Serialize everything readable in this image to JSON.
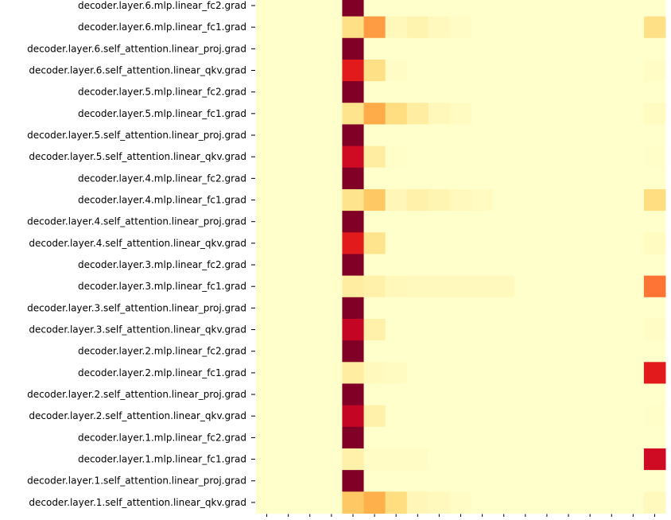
{
  "chart_data": {
    "type": "heatmap",
    "title": "",
    "xlabel": "",
    "ylabel": "",
    "colormap": "YlOrRd",
    "color_low": "#ffffcc",
    "color_high": "#800026",
    "n_columns": 19,
    "rows": [
      {
        "label": "decoder.layer.6.mlp.linear_fc2.grad",
        "values": [
          0,
          0,
          0,
          0,
          1,
          0,
          0,
          0,
          0,
          0,
          0,
          0,
          0,
          0,
          0,
          0,
          0,
          0,
          0
        ]
      },
      {
        "label": "decoder.layer.6.mlp.linear_fc1.grad",
        "values": [
          0,
          0,
          0,
          0,
          0.2,
          0.45,
          0.05,
          0.08,
          0.04,
          0.02,
          0,
          0,
          0,
          0,
          0,
          0,
          0,
          0,
          0.2
        ]
      },
      {
        "label": "decoder.layer.6.self_attention.linear_proj.grad",
        "values": [
          0,
          0,
          0,
          0,
          1,
          0,
          0,
          0,
          0,
          0,
          0,
          0,
          0,
          0,
          0,
          0,
          0,
          0,
          0
        ]
      },
      {
        "label": "decoder.layer.6.self_attention.linear_qkv.grad",
        "values": [
          0,
          0,
          0,
          0,
          0.75,
          0.2,
          0.02,
          0,
          0,
          0,
          0,
          0,
          0,
          0,
          0,
          0,
          0,
          0,
          0.02
        ]
      },
      {
        "label": "decoder.layer.5.mlp.linear_fc2.grad",
        "values": [
          0,
          0,
          0,
          0,
          1,
          0,
          0,
          0,
          0,
          0,
          0,
          0,
          0,
          0,
          0,
          0,
          0,
          0,
          0
        ]
      },
      {
        "label": "decoder.layer.5.mlp.linear_fc1.grad",
        "values": [
          0,
          0,
          0,
          0,
          0.18,
          0.4,
          0.22,
          0.12,
          0.05,
          0.03,
          0,
          0,
          0,
          0,
          0,
          0,
          0,
          0,
          0.03
        ]
      },
      {
        "label": "decoder.layer.5.self_attention.linear_proj.grad",
        "values": [
          0,
          0,
          0,
          0,
          1,
          0,
          0,
          0,
          0,
          0,
          0,
          0,
          0,
          0,
          0,
          0,
          0,
          0,
          0
        ]
      },
      {
        "label": "decoder.layer.5.self_attention.linear_qkv.grad",
        "values": [
          0,
          0,
          0,
          0,
          0.82,
          0.12,
          0.01,
          0,
          0,
          0,
          0,
          0,
          0,
          0,
          0,
          0,
          0,
          0,
          0.01
        ]
      },
      {
        "label": "decoder.layer.4.mlp.linear_fc2.grad",
        "values": [
          0,
          0,
          0,
          0,
          1,
          0,
          0,
          0,
          0,
          0,
          0,
          0,
          0,
          0,
          0,
          0,
          0,
          0,
          0
        ]
      },
      {
        "label": "decoder.layer.4.mlp.linear_fc1.grad",
        "values": [
          0,
          0,
          0,
          0,
          0.18,
          0.3,
          0.06,
          0.1,
          0.07,
          0.04,
          0.03,
          0,
          0,
          0,
          0,
          0,
          0,
          0,
          0.22
        ]
      },
      {
        "label": "decoder.layer.4.self_attention.linear_proj.grad",
        "values": [
          0,
          0,
          0,
          0,
          1,
          0,
          0,
          0,
          0,
          0,
          0,
          0,
          0,
          0,
          0,
          0,
          0,
          0,
          0
        ]
      },
      {
        "label": "decoder.layer.4.self_attention.linear_qkv.grad",
        "values": [
          0,
          0,
          0,
          0,
          0.75,
          0.18,
          0,
          0,
          0,
          0,
          0,
          0,
          0,
          0,
          0,
          0,
          0,
          0,
          0.03
        ]
      },
      {
        "label": "decoder.layer.3.mlp.linear_fc2.grad",
        "values": [
          0,
          0,
          0,
          0,
          1,
          0,
          0,
          0,
          0,
          0,
          0,
          0,
          0,
          0,
          0,
          0,
          0,
          0,
          0
        ]
      },
      {
        "label": "decoder.layer.3.mlp.linear_fc1.grad",
        "values": [
          0,
          0,
          0,
          0,
          0.12,
          0.1,
          0.05,
          0.04,
          0.04,
          0.04,
          0.04,
          0.04,
          0,
          0,
          0,
          0,
          0,
          0,
          0.55
        ]
      },
      {
        "label": "decoder.layer.3.self_attention.linear_proj.grad",
        "values": [
          0,
          0,
          0,
          0,
          1,
          0,
          0,
          0,
          0,
          0,
          0,
          0,
          0,
          0,
          0,
          0,
          0,
          0,
          0
        ]
      },
      {
        "label": "decoder.layer.3.self_attention.linear_qkv.grad",
        "values": [
          0,
          0,
          0,
          0,
          0.85,
          0.1,
          0,
          0,
          0,
          0,
          0,
          0,
          0,
          0,
          0,
          0,
          0,
          0,
          0.02
        ]
      },
      {
        "label": "decoder.layer.2.mlp.linear_fc2.grad",
        "values": [
          0,
          0,
          0,
          0,
          1,
          0,
          0,
          0,
          0,
          0,
          0,
          0,
          0,
          0,
          0,
          0,
          0,
          0,
          0
        ]
      },
      {
        "label": "decoder.layer.2.mlp.linear_fc1.grad",
        "values": [
          0,
          0,
          0,
          0,
          0.12,
          0.04,
          0.03,
          0,
          0,
          0,
          0,
          0,
          0,
          0,
          0,
          0,
          0,
          0,
          0.75
        ]
      },
      {
        "label": "decoder.layer.2.self_attention.linear_proj.grad",
        "values": [
          0,
          0,
          0,
          0,
          1,
          0,
          0,
          0,
          0,
          0,
          0,
          0,
          0,
          0,
          0,
          0,
          0,
          0,
          0
        ]
      },
      {
        "label": "decoder.layer.2.self_attention.linear_qkv.grad",
        "values": [
          0,
          0,
          0,
          0,
          0.85,
          0.1,
          0,
          0,
          0,
          0,
          0,
          0,
          0,
          0,
          0,
          0,
          0,
          0,
          0.01
        ]
      },
      {
        "label": "decoder.layer.1.mlp.linear_fc2.grad",
        "values": [
          0,
          0,
          0,
          0,
          1,
          0,
          0,
          0,
          0,
          0,
          0,
          0,
          0,
          0,
          0,
          0,
          0,
          0,
          0
        ]
      },
      {
        "label": "decoder.layer.1.mlp.linear_fc1.grad",
        "values": [
          0,
          0,
          0,
          0,
          0.1,
          0.02,
          0.02,
          0.02,
          0,
          0,
          0,
          0,
          0,
          0,
          0,
          0,
          0,
          0,
          0.82
        ]
      },
      {
        "label": "decoder.layer.1.self_attention.linear_proj.grad",
        "values": [
          0,
          0,
          0,
          0,
          1,
          0,
          0,
          0,
          0,
          0,
          0,
          0,
          0,
          0,
          0,
          0,
          0,
          0,
          0
        ]
      },
      {
        "label": "decoder.layer.1.self_attention.linear_qkv.grad",
        "values": [
          0,
          0,
          0,
          0,
          0.3,
          0.38,
          0.22,
          0.06,
          0.04,
          0.02,
          0,
          0,
          0,
          0,
          0,
          0,
          0,
          0,
          0.04
        ]
      }
    ]
  }
}
